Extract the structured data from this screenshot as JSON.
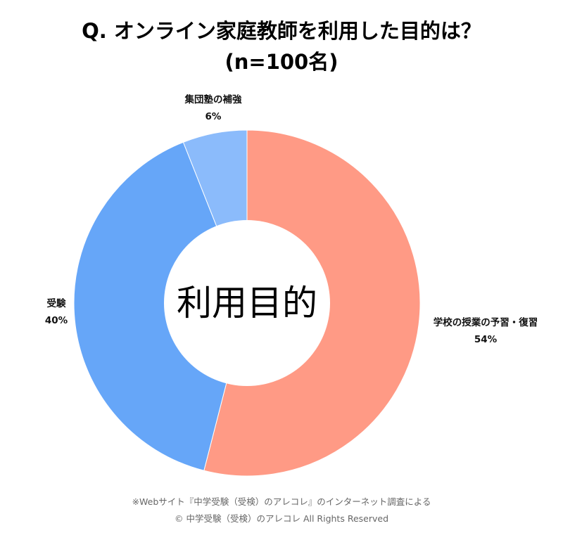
{
  "title": {
    "line1": "Q. オンライン家庭教師を利用した目的は？",
    "line2": "(n=100名)"
  },
  "chart_data": {
    "type": "pie",
    "variant": "donut",
    "center_label": "利用目的",
    "slices": [
      {
        "label": "学校の授業の予習・復習",
        "value": 54,
        "display": "54%",
        "color": "#FF9A85"
      },
      {
        "label": "受験",
        "value": 40,
        "display": "40%",
        "color": "#66A6F8"
      },
      {
        "label": "集団塾の補強",
        "value": 6,
        "display": "6%",
        "color": "#8BBBFB"
      }
    ],
    "legend": "none"
  },
  "footer": {
    "source": "※Webサイト『中学受験（受検）のアレコレ』のインターネット調査による",
    "copyright": "© 中学受験（受検）のアレコレ All Rights Reserved"
  }
}
